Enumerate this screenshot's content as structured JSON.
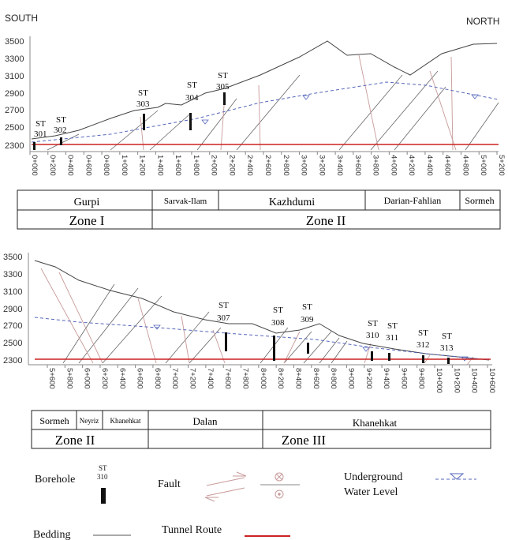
{
  "labels": {
    "south": "SOUTH",
    "north": "NORTH"
  },
  "section1": {
    "elevations": [
      "3500",
      "3300",
      "3100",
      "2900",
      "2700",
      "2500",
      "2300"
    ],
    "chainage": [
      "0+000",
      "0+200",
      "0+400",
      "0+600",
      "0+800",
      "1+000",
      "1+200",
      "1+400",
      "1+600",
      "1+800",
      "2+000",
      "2+200",
      "2+400",
      "2+600",
      "2+800",
      "3+000",
      "3+200",
      "3+400",
      "3+600",
      "3+800",
      "4+000",
      "4+200",
      "4+400",
      "4+600",
      "4+800",
      "5+000",
      "5+200"
    ],
    "boreholes": [
      {
        "id": "ST",
        "num": "301"
      },
      {
        "id": "ST",
        "num": "302"
      },
      {
        "id": "ST",
        "num": "303"
      },
      {
        "id": "ST",
        "num": "304"
      },
      {
        "id": "ST",
        "num": "305"
      }
    ],
    "formations": [
      "Gurpi",
      "Sarvak-Ilam",
      "Kazhdumi",
      "Darian-Fahlian",
      "Sormeh"
    ],
    "zones": [
      "Zone I",
      "Zone II"
    ]
  },
  "section2": {
    "elevations": [
      "3500",
      "3300",
      "3100",
      "2900",
      "2700",
      "2500",
      "2300"
    ],
    "chainage": [
      "5+600",
      "5+800",
      "6+000",
      "6+200",
      "6+400",
      "6+600",
      "6+800",
      "7+000",
      "7+200",
      "7+400",
      "7+600",
      "7+800",
      "8+000",
      "8+200",
      "8+400",
      "8+600",
      "8+800",
      "9+000",
      "9+200",
      "9+400",
      "9+600",
      "9+800",
      "10+000",
      "10+200",
      "10+400",
      "10+600"
    ],
    "boreholes": [
      {
        "id": "ST",
        "num": "307"
      },
      {
        "id": "ST",
        "num": "308"
      },
      {
        "id": "ST",
        "num": "309"
      },
      {
        "id": "ST",
        "num": "310"
      },
      {
        "id": "ST",
        "num": "311"
      },
      {
        "id": "ST",
        "num": "312"
      },
      {
        "id": "ST",
        "num": "313"
      }
    ],
    "formations": [
      "Sormeh",
      "Neyriz",
      "Khanehkat",
      "Dalan",
      "Khanehkat"
    ],
    "zones": [
      "Zone II",
      "Zone III"
    ]
  },
  "legend": {
    "borehole": "Borehole",
    "borehole_st": "ST",
    "borehole_num": "310",
    "fault": "Fault",
    "underground": "Underground",
    "water_level": "Water Level",
    "bedding": "Bedding",
    "tunnel_route": "Tunnel Route"
  },
  "colors": {
    "tunnel": "#cc2222",
    "water": "#5566bb",
    "fault": "#c89a9a",
    "bedding": "#555555",
    "terrain": "#444444"
  }
}
